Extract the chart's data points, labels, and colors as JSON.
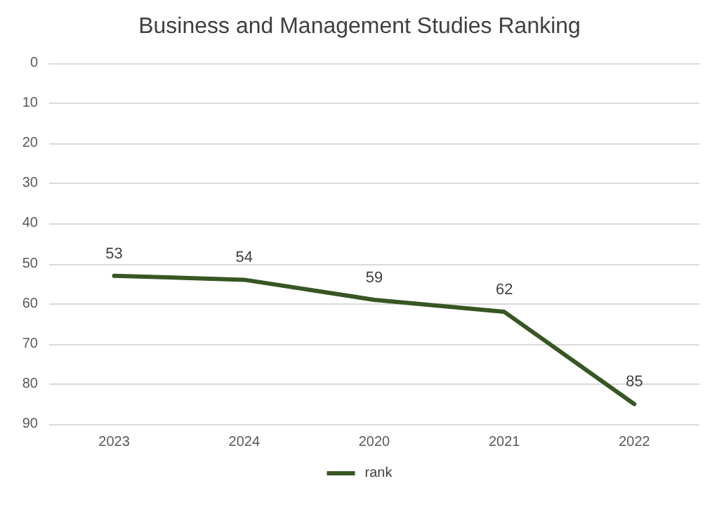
{
  "chart_data": {
    "type": "line",
    "title": "Business and Management Studies Ranking",
    "categories": [
      "2023",
      "2024",
      "2020",
      "2021",
      "2022"
    ],
    "series": [
      {
        "name": "rank",
        "color": "#375623",
        "values": [
          53,
          54,
          59,
          62,
          85
        ]
      }
    ],
    "ylim": [
      90,
      0
    ],
    "yticks": [
      0,
      10,
      20,
      30,
      40,
      50,
      60,
      70,
      80,
      90
    ],
    "grid": "y",
    "legend": "bottom",
    "marker": "none",
    "data_labels": true
  }
}
